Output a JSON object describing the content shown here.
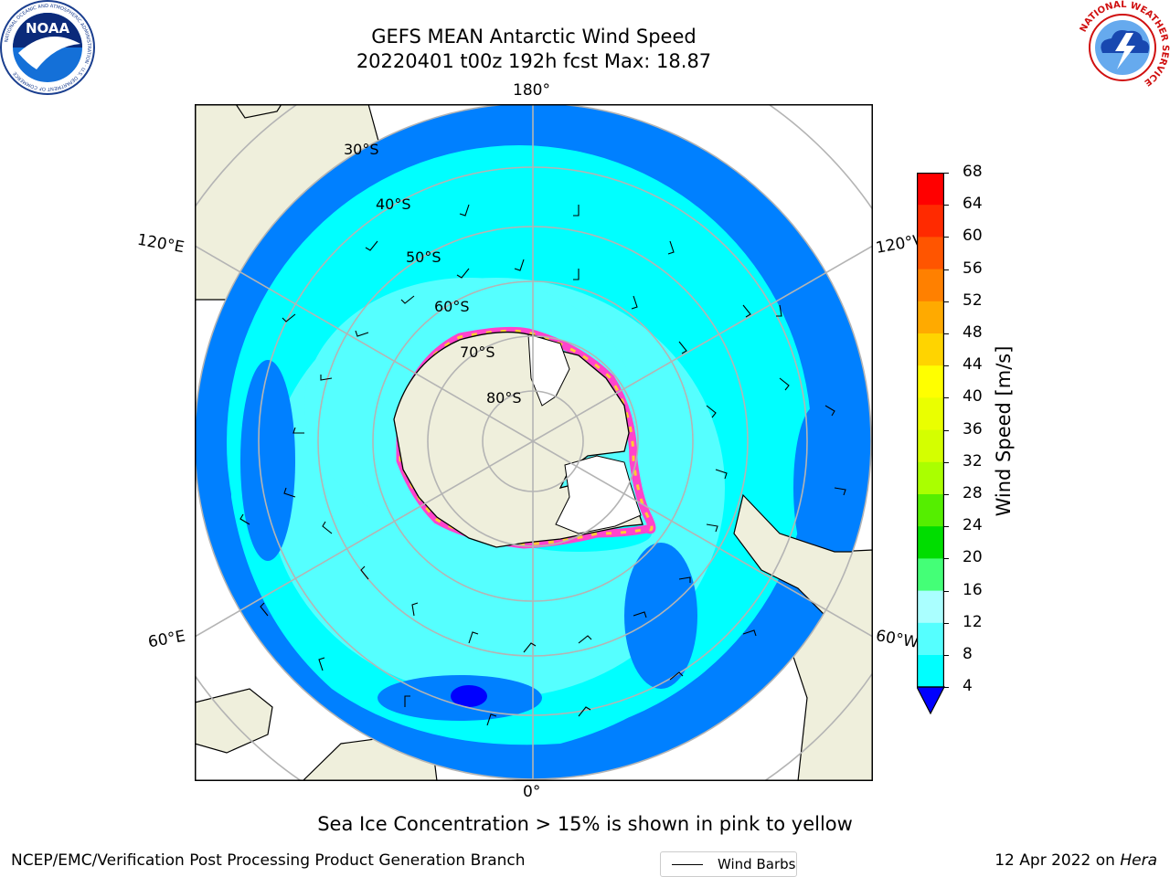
{
  "header": {
    "title_line1": "GEFS MEAN Antarctic Wind Speed",
    "title_line2": "20220401 t00z 192h fcst   Max: 18.87"
  },
  "logos": {
    "left": "NOAA",
    "left_ring": "NATIONAL OCEANIC AND ATMOSPHERIC ADMINISTRATION · U.S. DEPARTMENT OF COMMERCE",
    "right_ring": "NATIONAL WEATHER SERVICE"
  },
  "map": {
    "lon_labels": {
      "top": "180°",
      "bottom": "0°",
      "left_upper": "120°E",
      "left_lower": "60°E",
      "right_upper": "120°W",
      "right_lower": "60°W"
    },
    "lat_labels": [
      "30°S",
      "40°S",
      "50°S",
      "60°S",
      "70°S",
      "80°S"
    ],
    "legend_label": "Wind Barbs"
  },
  "colorbar": {
    "label": "Wind Speed [m/s]",
    "ticks": [
      "68",
      "64",
      "60",
      "56",
      "52",
      "48",
      "44",
      "40",
      "36",
      "32",
      "28",
      "24",
      "20",
      "16",
      "12",
      "8",
      "4"
    ],
    "colors": [
      "#ff0000",
      "#ff2a00",
      "#ff5500",
      "#ff8000",
      "#ffaa00",
      "#ffd400",
      "#ffff00",
      "#eaff00",
      "#d4ff00",
      "#aaff00",
      "#55ee00",
      "#00dd00",
      "#44ff77",
      "#aaffff",
      "#55ffff",
      "#00ffff",
      "#0080ff"
    ],
    "extend_color": "#0000ff"
  },
  "caption": "Sea Ice Concentration > 15% is shown in pink to yellow",
  "footer": {
    "left": "NCEP/EMC/Verification Post Processing Product Generation Branch",
    "right_prefix": "12 Apr 2022 on ",
    "right_host": "Hera"
  }
}
